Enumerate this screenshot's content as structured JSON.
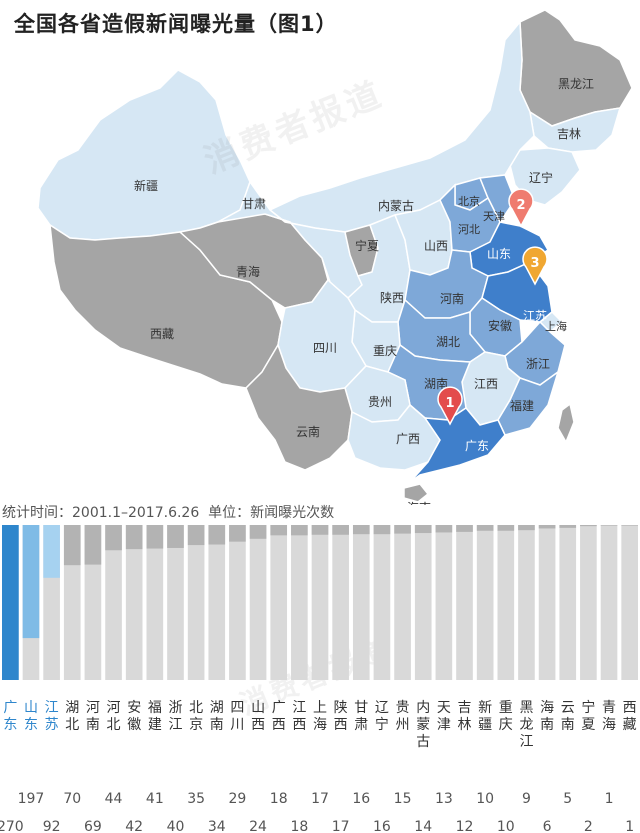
{
  "title": "全国各省造假新闻曝光量（图1）",
  "watermark": "消费者报道",
  "footnote": {
    "period_label": "统计时间：",
    "period": "2001.1–2017.6.26",
    "unit_label": "单位：",
    "unit": "新闻曝光次数"
  },
  "colors": {
    "rank1": "#2e86cc",
    "rank2": "#7fbbe6",
    "rank3": "#a6d2f0",
    "bar_light": "#d9d9d9",
    "bar_dark": "#b3b3b3",
    "map_base": "#d6e7f4",
    "map_gray": "#a5a5a5",
    "map_mid": "#7ea8d8",
    "map_dark": "#3f7fcb",
    "pin_red": "#e34c4c",
    "pin_salmon": "#ef7b6f",
    "pin_orange": "#f0a732"
  },
  "map": {
    "province_labels": [
      "黑龙江",
      "吉林",
      "辽宁",
      "新疆",
      "甘肃",
      "内蒙古",
      "北京",
      "天津",
      "河北",
      "宁夏",
      "山西",
      "山东",
      "青海",
      "陕西",
      "河南",
      "江苏",
      "上海",
      "安徽",
      "西藏",
      "四川",
      "重庆",
      "湖北",
      "浙江",
      "湖南",
      "江西",
      "福建",
      "贵州",
      "云南",
      "广西",
      "广东",
      "海南"
    ],
    "pins": [
      "1",
      "2",
      "3"
    ]
  },
  "chart_data": {
    "type": "bar",
    "title": "全国各省造假新闻曝光量（图1）",
    "xlabel": "",
    "ylabel": "新闻曝光次数",
    "ylim": [
      0,
      270
    ],
    "categories": [
      "广东",
      "山东",
      "江苏",
      "湖北",
      "河南",
      "河北",
      "安徽",
      "福建",
      "浙江",
      "北京",
      "湖南",
      "四川",
      "山西",
      "广西",
      "江西",
      "上海",
      "陕西",
      "甘肃",
      "辽宁",
      "贵州",
      "内蒙古",
      "天津",
      "吉林",
      "新疆",
      "重庆",
      "黑龙江",
      "海南",
      "云南",
      "宁夏",
      "青海",
      "西藏"
    ],
    "values": [
      270,
      197,
      92,
      70,
      69,
      44,
      42,
      41,
      40,
      35,
      34,
      29,
      24,
      18,
      18,
      17,
      17,
      16,
      16,
      15,
      14,
      13,
      12,
      10,
      10,
      9,
      6,
      5,
      2,
      1,
      1
    ],
    "value_labels": [
      "270",
      "197",
      "92",
      "70",
      "69",
      "44",
      "42",
      "41",
      "40",
      "35",
      "34",
      "29",
      "24",
      "18",
      "18",
      "17",
      "17",
      "16",
      "16",
      "15",
      "14",
      "13",
      "12",
      "10",
      "10",
      "9",
      "6",
      "5",
      "2",
      "1",
      "1"
    ],
    "legend": "none",
    "grid": false
  }
}
